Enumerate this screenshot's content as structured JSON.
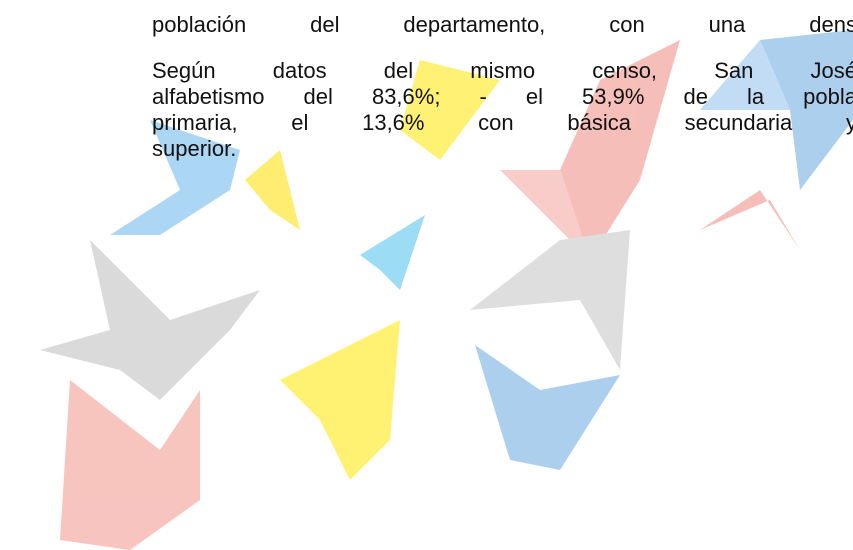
{
  "paragraphs": [
    {
      "lines": [
        "población del departamento, con una dens"
      ]
    },
    {
      "lines": [
        "Según datos del mismo censo, San José",
        "alfabetismo del 83,6%; - el 53,9% de la pobla",
        "primaria, el 13,6% con básica secundaria y",
        "superior."
      ]
    }
  ]
}
